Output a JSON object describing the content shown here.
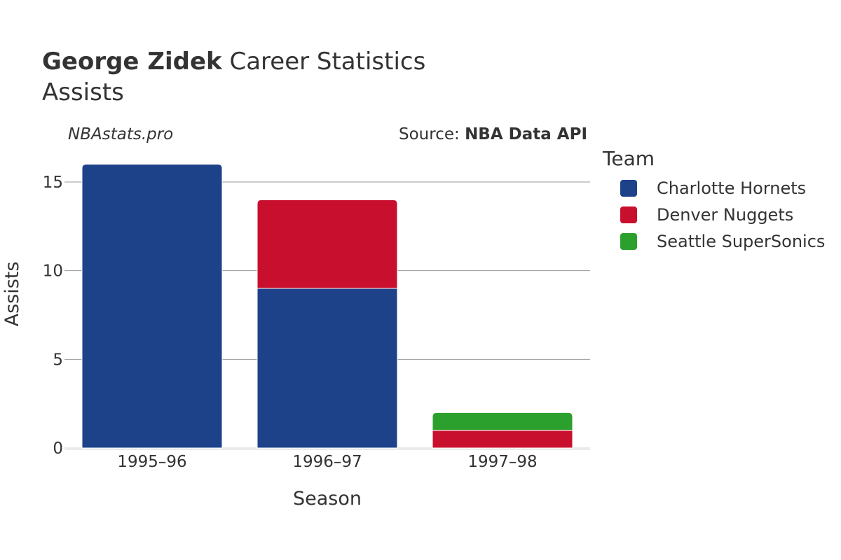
{
  "header": {
    "player_name": "George Zidek",
    "title_suffix": "Career Statistics",
    "subtitle": "Assists"
  },
  "watermark": "NBAstats.pro",
  "source": {
    "prefix": "Source: ",
    "name": "NBA Data API"
  },
  "legend": {
    "title": "Team",
    "items": [
      {
        "label": "Charlotte Hornets",
        "color": "#1d428a"
      },
      {
        "label": "Denver Nuggets",
        "color": "#c8102e"
      },
      {
        "label": "Seattle SuperSonics",
        "color": "#2ca02c"
      }
    ]
  },
  "chart_data": {
    "type": "bar",
    "stacked": true,
    "title": "George Zidek Career Statistics",
    "subtitle": "Assists",
    "xlabel": "Season",
    "ylabel": "Assists",
    "categories": [
      "1995–96",
      "1996–97",
      "1997–98"
    ],
    "ylim": [
      0,
      16.5
    ],
    "yticks": [
      0,
      5,
      10,
      15
    ],
    "series": [
      {
        "name": "Charlotte Hornets",
        "color": "#1d428a",
        "values": [
          16,
          9,
          0
        ]
      },
      {
        "name": "Denver Nuggets",
        "color": "#c8102e",
        "values": [
          0,
          5,
          1
        ]
      },
      {
        "name": "Seattle SuperSonics",
        "color": "#2ca02c",
        "values": [
          0,
          0,
          1
        ]
      }
    ]
  }
}
